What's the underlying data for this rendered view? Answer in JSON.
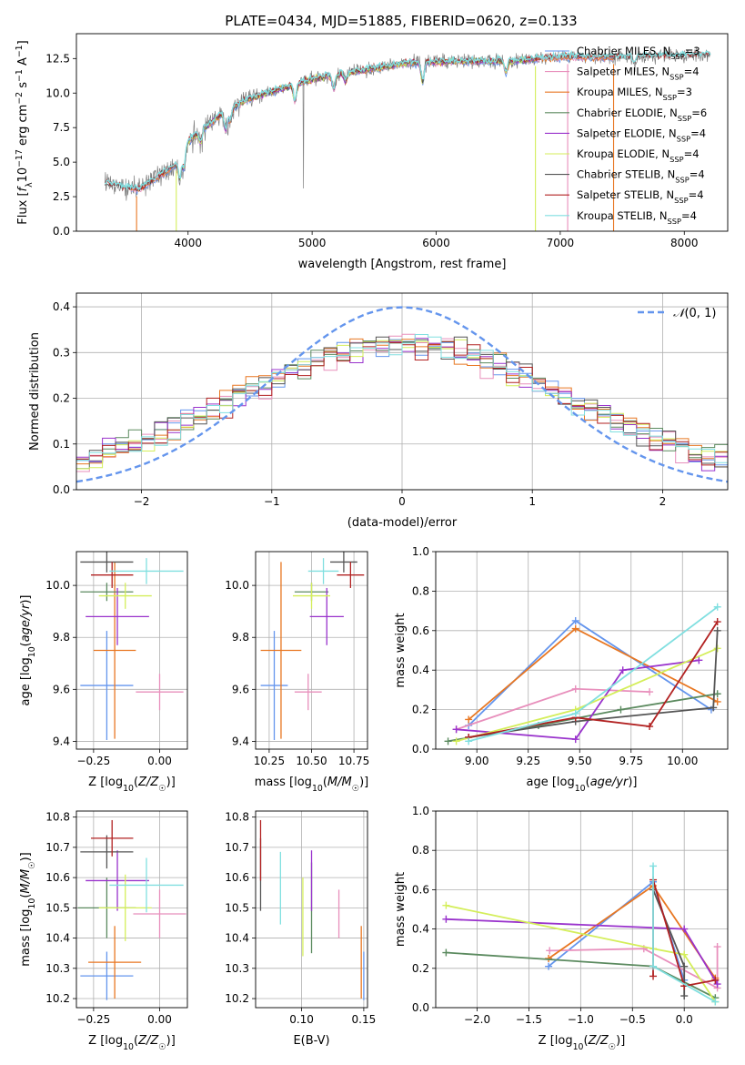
{
  "figure_title": "PLATE=0434, MJD=51885, FIBERID=0620, z=0.133",
  "colors": {
    "Chabrier MILES": "#6495ed",
    "Salpeter MILES": "#e88fbc",
    "Kroupa MILES": "#e87722",
    "Chabrier ELODIE": "#5b8a5f",
    "Salpeter ELODIE": "#9932cc",
    "Kroupa ELODIE": "#d4ee5a",
    "Chabrier STELIB": "#555555",
    "Salpeter STELIB": "#b22222",
    "Kroupa STELIB": "#80dfe0"
  },
  "chart_data": [
    {
      "id": "spectrum",
      "type": "line",
      "xlabel": "wavelength [Angstrom, rest frame]",
      "ylabel": "Flux [f_λ 10^-17 erg cm^-2 s^-1 A^-1]",
      "xlim": [
        3100,
        8350
      ],
      "ylim": [
        0,
        14.3
      ],
      "xticks": [
        4000,
        5000,
        6000,
        7000,
        8000
      ],
      "yticks": [
        0.0,
        2.5,
        5.0,
        7.5,
        10.0,
        12.5
      ],
      "xtick_labels": [
        "4000",
        "5000",
        "6000",
        "7000",
        "8000"
      ],
      "ytick_labels": [
        "0.0",
        "2.5",
        "5.0",
        "7.5",
        "10.0",
        "12.5"
      ],
      "legend_position": "top-right",
      "legend": [
        {
          "name": "Chabrier MILES",
          "nssp": "3"
        },
        {
          "name": "Salpeter MILES",
          "nssp": "4"
        },
        {
          "name": "Kroupa MILES",
          "nssp": "3"
        },
        {
          "name": "Chabrier ELODIE",
          "nssp": "6"
        },
        {
          "name": "Salpeter ELODIE",
          "nssp": "4"
        },
        {
          "name": "Kroupa ELODIE",
          "nssp": "4"
        },
        {
          "name": "Chabrier STELIB",
          "nssp": "4"
        },
        {
          "name": "Salpeter STELIB",
          "nssp": "4"
        },
        {
          "name": "Kroupa STELIB",
          "nssp": "4"
        }
      ],
      "continuum": {
        "x": [
          3350,
          3600,
          3900,
          4000,
          4300,
          4500,
          5000,
          5300,
          5800,
          6200,
          6600,
          7000,
          7500,
          8000,
          8200
        ],
        "y": [
          3.4,
          3.0,
          4.8,
          6.5,
          8.7,
          9.6,
          11.0,
          11.5,
          12.2,
          12.3,
          12.3,
          12.6,
          12.6,
          12.7,
          12.8
        ]
      },
      "dips": [
        {
          "x": 3585,
          "model": "Kroupa MILES"
        },
        {
          "x": 3905,
          "model": "Kroupa ELODIE"
        },
        {
          "x": 6800,
          "model": "Kroupa ELODIE"
        },
        {
          "x": 7060,
          "model": "Salpeter MILES"
        },
        {
          "x": 7430,
          "model": "Kroupa MILES"
        }
      ]
    },
    {
      "id": "residual-hist",
      "type": "line",
      "xlabel": "(data-model)/error",
      "ylabel": "Normed distribution",
      "xlim": [
        -2.5,
        2.5
      ],
      "ylim": [
        0,
        0.43
      ],
      "xticks": [
        -2,
        -1,
        0,
        1,
        2
      ],
      "yticks": [
        0.0,
        0.1,
        0.2,
        0.3,
        0.4
      ],
      "xtick_labels": [
        "−2",
        "−1",
        "0",
        "1",
        "2"
      ],
      "ytick_labels": [
        "0.0",
        "0.1",
        "0.2",
        "0.3",
        "0.4"
      ],
      "bin_width": 0.1,
      "gaussian_label": "N(0,1)",
      "gaussian_color": "#6495ed",
      "legend_position": "top-right"
    },
    {
      "id": "age-vs-Z",
      "type": "scatter",
      "xlabel": "Z [log10(Z/Z☉)]",
      "ylabel": "age [log10(age/yr)]",
      "xlim": [
        -0.315,
        0.105
      ],
      "ylim": [
        9.37,
        10.13
      ],
      "xticks": [
        -0.25,
        0.0
      ],
      "yticks": [
        9.4,
        9.6,
        9.8,
        10.0
      ],
      "xtick_labels": [
        "−0.25",
        "0.00"
      ],
      "ytick_labels": [
        "9.4",
        "9.6",
        "9.8",
        "10.0"
      ],
      "points": [
        {
          "model": "Chabrier MILES",
          "x": -0.2,
          "xerr": 0.1,
          "y": 9.615,
          "yerr": 0.21
        },
        {
          "model": "Salpeter MILES",
          "x": 0.0,
          "xerr": 0.09,
          "y": 9.59,
          "yerr": 0.07
        },
        {
          "model": "Kroupa MILES",
          "x": -0.17,
          "xerr": 0.08,
          "y": 9.75,
          "yerr": 0.34
        },
        {
          "model": "Chabrier ELODIE",
          "x": -0.2,
          "xerr": 0.1,
          "y": 9.975,
          "yerr": 0.035
        },
        {
          "model": "Salpeter ELODIE",
          "x": -0.16,
          "xerr": 0.12,
          "y": 9.88,
          "yerr": 0.11
        },
        {
          "model": "Kroupa ELODIE",
          "x": -0.13,
          "xerr": 0.1,
          "y": 9.96,
          "yerr": 0.05
        },
        {
          "model": "Chabrier STELIB",
          "x": -0.2,
          "xerr": 0.1,
          "y": 10.09,
          "yerr": 0.04
        },
        {
          "model": "Salpeter STELIB",
          "x": -0.18,
          "xerr": 0.08,
          "y": 10.04,
          "yerr": 0.05
        },
        {
          "model": "Kroupa STELIB",
          "x": -0.05,
          "xerr": 0.14,
          "y": 10.055,
          "yerr": 0.05
        }
      ]
    },
    {
      "id": "age-vs-mass",
      "type": "scatter",
      "xlabel": "mass [log10(M/M☉)]",
      "ylabel": "",
      "xlim": [
        10.17,
        10.83
      ],
      "ylim": [
        9.37,
        10.13
      ],
      "xticks": [
        10.25,
        10.5,
        10.75
      ],
      "yticks": [
        9.4,
        9.6,
        9.8,
        10.0
      ],
      "xtick_labels": [
        "10.25",
        "10.50",
        "10.75"
      ],
      "ytick_labels": [
        "9.4",
        "9.6",
        "9.8",
        "10.0"
      ],
      "points": [
        {
          "model": "Chabrier MILES",
          "x": 10.28,
          "xerr": 0.08,
          "y": 9.615,
          "yerr": 0.21
        },
        {
          "model": "Salpeter MILES",
          "x": 10.48,
          "xerr": 0.08,
          "y": 9.59,
          "yerr": 0.07
        },
        {
          "model": "Kroupa MILES",
          "x": 10.32,
          "xerr": 0.12,
          "y": 9.75,
          "yerr": 0.34
        },
        {
          "model": "Chabrier ELODIE",
          "x": 10.5,
          "xerr": 0.1,
          "y": 9.975,
          "yerr": 0.035
        },
        {
          "model": "Salpeter ELODIE",
          "x": 10.59,
          "xerr": 0.1,
          "y": 9.88,
          "yerr": 0.11
        },
        {
          "model": "Kroupa ELODIE",
          "x": 10.5,
          "xerr": 0.11,
          "y": 9.96,
          "yerr": 0.05
        },
        {
          "model": "Chabrier STELIB",
          "x": 10.69,
          "xerr": 0.08,
          "y": 10.09,
          "yerr": 0.04
        },
        {
          "model": "Salpeter STELIB",
          "x": 10.73,
          "xerr": 0.08,
          "y": 10.04,
          "yerr": 0.05
        },
        {
          "model": "Kroupa STELIB",
          "x": 10.57,
          "xerr": 0.09,
          "y": 10.055,
          "yerr": 0.05
        }
      ]
    },
    {
      "id": "mass-weight-vs-age",
      "type": "line",
      "xlabel": "age [log10(age/yr)]",
      "ylabel": "mass weight",
      "xlim": [
        8.8,
        10.22
      ],
      "ylim": [
        0,
        1.0
      ],
      "xticks": [
        9.0,
        9.25,
        9.5,
        9.75,
        10.0
      ],
      "yticks": [
        0.0,
        0.2,
        0.4,
        0.6,
        0.8,
        1.0
      ],
      "xtick_labels": [
        "9.00",
        "9.25",
        "9.50",
        "9.75",
        "10.00"
      ],
      "ytick_labels": [
        "0.0",
        "0.2",
        "0.4",
        "0.6",
        "0.8",
        "1.0"
      ],
      "series": [
        {
          "model": "Chabrier MILES",
          "x": [
            8.96,
            9.48,
            10.14
          ],
          "y": [
            0.12,
            0.65,
            0.2
          ]
        },
        {
          "model": "Salpeter MILES",
          "x": [
            8.9,
            9.48,
            9.84
          ],
          "y": [
            0.1,
            0.305,
            0.29
          ]
        },
        {
          "model": "Kroupa MILES",
          "x": [
            8.96,
            9.48,
            10.17
          ],
          "y": [
            0.15,
            0.61,
            0.24
          ]
        },
        {
          "model": "Chabrier ELODIE",
          "x": [
            8.86,
            9.3,
            9.7,
            10.17
          ],
          "y": [
            0.04,
            0.12,
            0.2,
            0.28
          ]
        },
        {
          "model": "Salpeter ELODIE",
          "x": [
            8.9,
            9.48,
            9.71,
            10.08
          ],
          "y": [
            0.1,
            0.05,
            0.4,
            0.45
          ]
        },
        {
          "model": "Kroupa ELODIE",
          "x": [
            8.9,
            9.48,
            10.17
          ],
          "y": [
            0.04,
            0.2,
            0.51
          ]
        },
        {
          "model": "Chabrier STELIB",
          "x": [
            8.96,
            9.48,
            10.15,
            10.17
          ],
          "y": [
            0.06,
            0.14,
            0.21,
            0.6
          ]
        },
        {
          "model": "Salpeter STELIB",
          "x": [
            8.96,
            9.48,
            9.84,
            10.17
          ],
          "y": [
            0.06,
            0.16,
            0.115,
            0.645
          ]
        },
        {
          "model": "Kroupa STELIB",
          "x": [
            8.96,
            9.48,
            10.17
          ],
          "y": [
            0.04,
            0.18,
            0.72
          ]
        }
      ]
    },
    {
      "id": "mass-vs-Z",
      "type": "scatter",
      "xlabel": "Z [log10(Z/Z☉)]",
      "ylabel": "mass [log10(M/M☉)]",
      "xlim": [
        -0.315,
        0.105
      ],
      "ylim": [
        10.17,
        10.82
      ],
      "xticks": [
        -0.25,
        0.0
      ],
      "yticks": [
        10.2,
        10.3,
        10.4,
        10.5,
        10.6,
        10.7,
        10.8
      ],
      "xtick_labels": [
        "−0.25",
        "0.00"
      ],
      "ytick_labels": [
        "10.2",
        "10.3",
        "10.4",
        "10.5",
        "10.6",
        "10.7",
        "10.8"
      ],
      "points": [
        {
          "model": "Chabrier MILES",
          "x": -0.2,
          "xerr": 0.1,
          "y": 10.275,
          "yerr": 0.08
        },
        {
          "model": "Salpeter MILES",
          "x": 0.0,
          "xerr": 0.1,
          "y": 10.48,
          "yerr": 0.08
        },
        {
          "model": "Kroupa MILES",
          "x": -0.17,
          "xerr": 0.1,
          "y": 10.32,
          "yerr": 0.12
        },
        {
          "model": "Chabrier ELODIE",
          "x": -0.2,
          "xerr": 0.11,
          "y": 10.5,
          "yerr": 0.1
        },
        {
          "model": "Salpeter ELODIE",
          "x": -0.16,
          "xerr": 0.12,
          "y": 10.59,
          "yerr": 0.1
        },
        {
          "model": "Kroupa ELODIE",
          "x": -0.13,
          "xerr": 0.1,
          "y": 10.5,
          "yerr": 0.11
        },
        {
          "model": "Chabrier STELIB",
          "x": -0.2,
          "xerr": 0.1,
          "y": 10.685,
          "yerr": 0.055
        },
        {
          "model": "Salpeter STELIB",
          "x": -0.18,
          "xerr": 0.08,
          "y": 10.73,
          "yerr": 0.06
        },
        {
          "model": "Kroupa STELIB",
          "x": -0.05,
          "xerr": 0.14,
          "y": 10.575,
          "yerr": 0.09
        }
      ]
    },
    {
      "id": "mass-vs-ebv",
      "type": "scatter",
      "xlabel": "E(B-V)",
      "ylabel": "",
      "xlim": [
        0.063,
        0.153
      ],
      "ylim": [
        10.17,
        10.82
      ],
      "xticks": [
        0.1,
        0.15
      ],
      "yticks": [
        10.2,
        10.3,
        10.4,
        10.5,
        10.6,
        10.7,
        10.8
      ],
      "xtick_labels": [
        "0.10",
        "0.15"
      ],
      "ytick_labels": [
        "10.2",
        "10.3",
        "10.4",
        "10.5",
        "10.6",
        "10.7",
        "10.8"
      ],
      "points": [
        {
          "model": "Chabrier MILES",
          "x": 0.15,
          "y": 10.275,
          "yerr": 0.08
        },
        {
          "model": "Salpeter MILES",
          "x": 0.13,
          "y": 10.48,
          "yerr": 0.08
        },
        {
          "model": "Kroupa MILES",
          "x": 0.148,
          "y": 10.32,
          "yerr": 0.12
        },
        {
          "model": "Chabrier ELODIE",
          "x": 0.108,
          "y": 10.5,
          "yerr": 0.15
        },
        {
          "model": "Salpeter ELODIE",
          "x": 0.108,
          "y": 10.59,
          "yerr": 0.1
        },
        {
          "model": "Kroupa ELODIE",
          "x": 0.101,
          "y": 10.47,
          "yerr": 0.13
        },
        {
          "model": "Chabrier STELIB",
          "x": 0.067,
          "y": 10.61,
          "yerr": 0.12
        },
        {
          "model": "Salpeter STELIB",
          "x": 0.067,
          "y": 10.69,
          "yerr": 0.1
        },
        {
          "model": "Kroupa STELIB",
          "x": 0.083,
          "y": 10.565,
          "yerr": 0.12
        }
      ]
    },
    {
      "id": "mass-weight-vs-Z",
      "type": "line",
      "xlabel": "Z [log10(Z/Z☉)]",
      "ylabel": "mass weight",
      "xlim": [
        -2.4,
        0.42
      ],
      "ylim": [
        0,
        1.0
      ],
      "xticks": [
        -2.0,
        -1.5,
        -1.0,
        -0.5,
        0.0
      ],
      "yticks": [
        0.0,
        0.2,
        0.4,
        0.6,
        0.8,
        1.0
      ],
      "xtick_labels": [
        "−2.0",
        "−1.5",
        "−1.0",
        "−0.5",
        "0.0"
      ],
      "ytick_labels": [
        "0.0",
        "0.2",
        "0.4",
        "0.6",
        "0.8",
        "1.0"
      ],
      "series": [
        {
          "model": "Chabrier MILES",
          "x": [
            -1.31,
            -0.3,
            0.0
          ],
          "y": [
            0.21,
            0.64,
            0.14
          ]
        },
        {
          "model": "Salpeter MILES",
          "x": [
            -1.3,
            -0.39,
            0.32,
            0.32
          ],
          "y": [
            0.29,
            0.3,
            0.1,
            0.31
          ]
        },
        {
          "model": "Kroupa MILES",
          "x": [
            -1.31,
            -0.3,
            0.3
          ],
          "y": [
            0.25,
            0.62,
            0.15
          ]
        },
        {
          "model": "Chabrier ELODIE",
          "x": [
            -2.3,
            -0.3,
            0.3
          ],
          "y": [
            0.28,
            0.21,
            0.05
          ]
        },
        {
          "model": "Salpeter ELODIE",
          "x": [
            -2.3,
            0.0,
            0.32
          ],
          "y": [
            0.45,
            0.4,
            0.12
          ]
        },
        {
          "model": "Kroupa ELODIE",
          "x": [
            -2.3,
            -0.3,
            0.0,
            0.3
          ],
          "y": [
            0.52,
            0.3,
            0.27,
            0.03
          ]
        },
        {
          "model": "Chabrier STELIB",
          "x": [
            -0.3,
            0.0,
            0.0
          ],
          "y": [
            0.6,
            0.21,
            0.06
          ]
        },
        {
          "model": "Salpeter STELIB",
          "x": [
            -0.3,
            -0.3,
            0.0,
            0.3
          ],
          "y": [
            0.16,
            0.65,
            0.11,
            0.14
          ]
        },
        {
          "model": "Kroupa STELIB",
          "x": [
            -0.3,
            -0.3,
            0.3
          ],
          "y": [
            0.72,
            0.21,
            0.03
          ]
        }
      ]
    }
  ]
}
